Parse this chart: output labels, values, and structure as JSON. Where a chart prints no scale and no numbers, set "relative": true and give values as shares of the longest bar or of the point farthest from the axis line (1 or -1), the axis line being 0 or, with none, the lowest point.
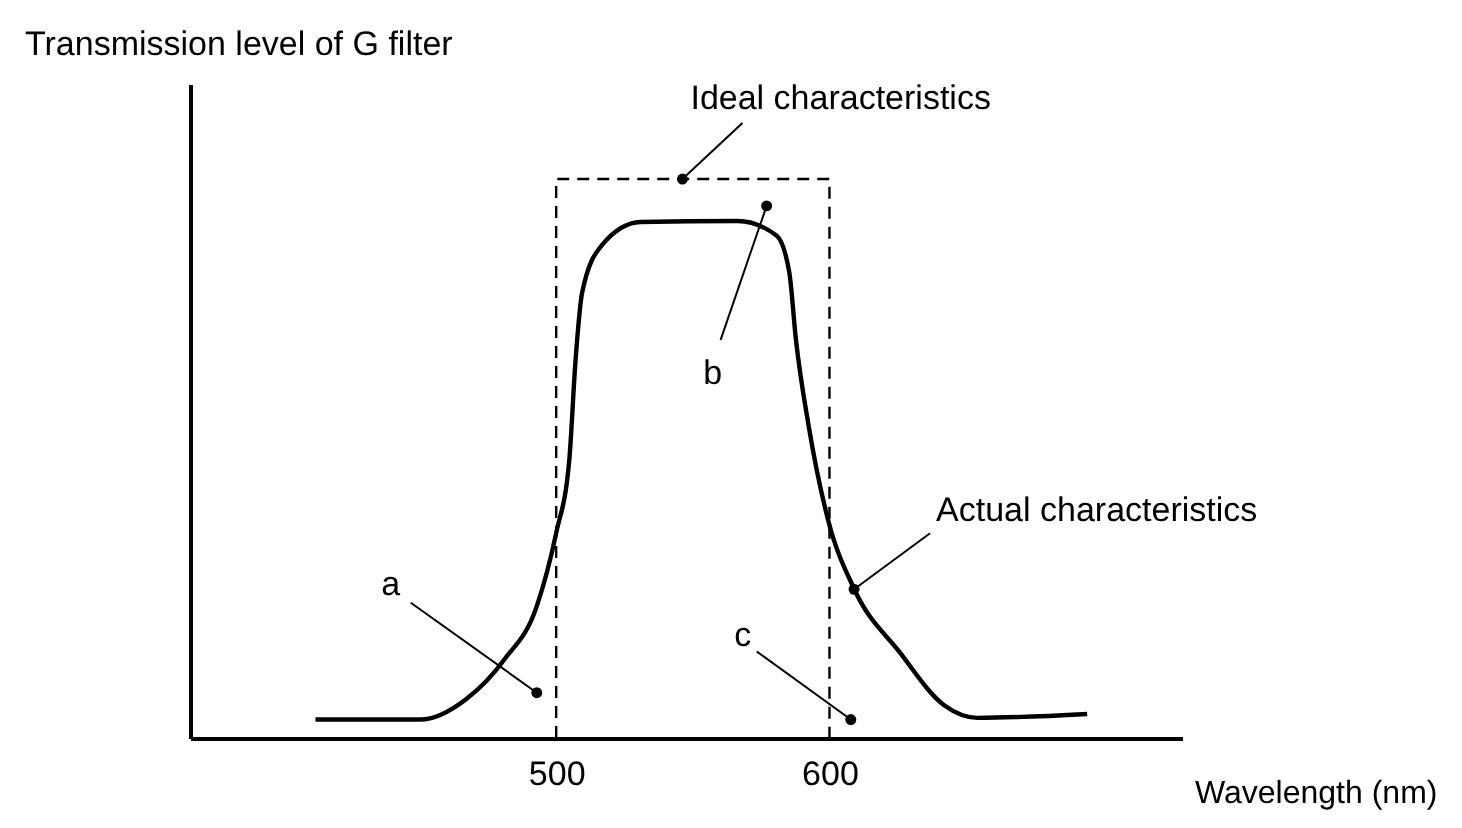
{
  "chart_data": {
    "type": "line",
    "relative": true,
    "xlabel": "Wavelength (nm)",
    "ylabel": "Transmission level of G filter",
    "xlim": [
      366,
      729
    ],
    "xticks": [
      500,
      600
    ],
    "series": [
      {
        "color": "#000000",
        "line_style": "dashed",
        "x": [
          500,
          500,
          600,
          600
        ],
        "values": [
          0,
          1,
          1,
          0
        ]
      },
      {
        "color": "#000000",
        "line_style": "solid",
        "x": [
          411.9,
          450.2,
          466.9,
          481.1,
          492.9,
          500,
          504.8,
          507.1,
          509.5,
          516.6,
          530.8,
          566.4,
          580.6,
          585.3,
          587.7,
          592.4,
          599.5,
          609,
          625.6,
          642.1,
          654,
          694.3
        ],
        "values": [
          0.033,
          0.033,
          0.069,
          0.141,
          0.236,
          0.367,
          0.498,
          0.677,
          0.797,
          0.881,
          0.923,
          0.925,
          0.899,
          0.833,
          0.714,
          0.558,
          0.39,
          0.267,
          0.154,
          0.058,
          0.036,
          0.043
        ]
      }
    ],
    "annotations": [
      {
        "text": "Ideal characteristics",
        "x": 546.2,
        "y": 1.0
      },
      {
        "text": "b",
        "x": 577,
        "y": 0.952
      },
      {
        "text": "Actual characteristics",
        "x": 609,
        "y": 0.266
      },
      {
        "text": "a",
        "x": 492.9,
        "y": 0.081
      },
      {
        "text": "c",
        "x": 607.8,
        "y": 0.033
      }
    ]
  }
}
